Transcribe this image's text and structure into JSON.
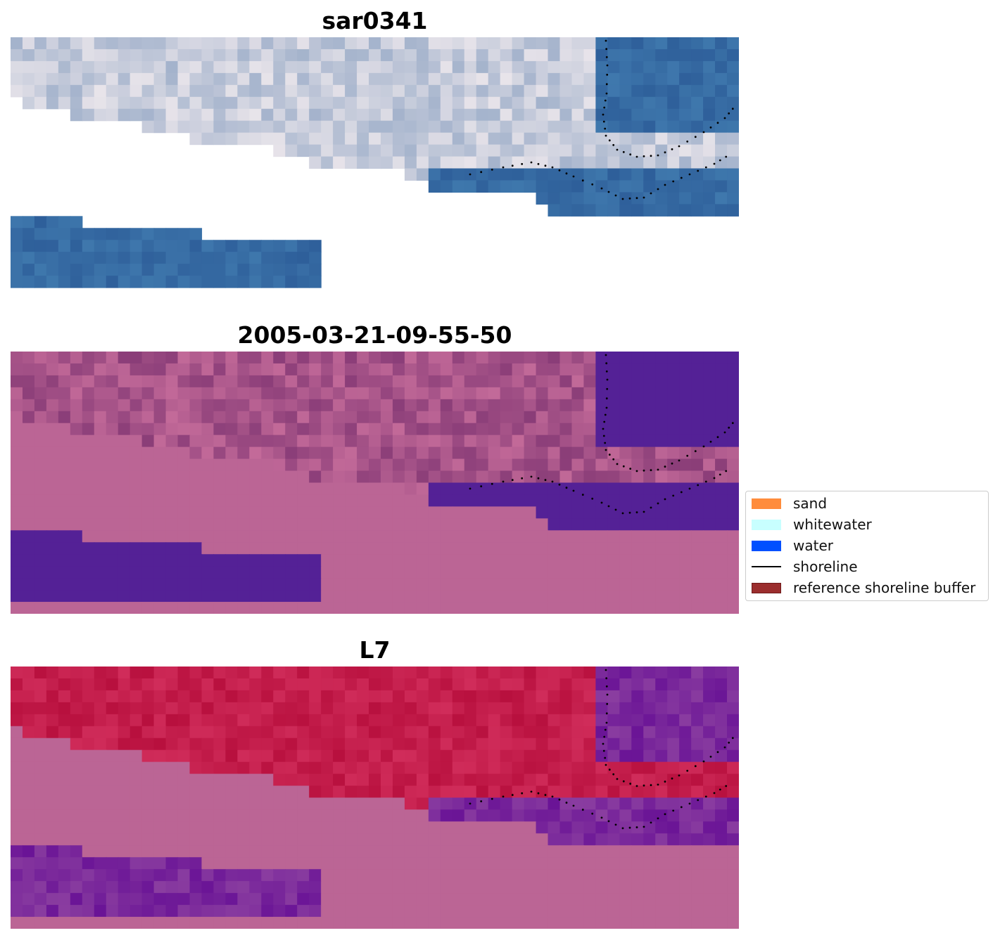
{
  "panels": [
    {
      "title": "sar0341",
      "variant": "rgb"
    },
    {
      "title": "2005-03-21-09-55-50",
      "variant": "classified"
    },
    {
      "title": "L7",
      "variant": "ndwi"
    }
  ],
  "legend": {
    "items": [
      {
        "label": "sand",
        "color": "#ff8c3c",
        "kind": "patch"
      },
      {
        "label": "whitewater",
        "color": "#c8ffff",
        "kind": "patch"
      },
      {
        "label": "water",
        "color": "#0050ff",
        "kind": "patch"
      },
      {
        "label": "shoreline",
        "color": "#000000",
        "kind": "line"
      },
      {
        "label": "reference shoreline buffer",
        "color": "#9b2d2d",
        "kind": "patch"
      }
    ]
  },
  "colors": {
    "masked_pink": "#bb6595",
    "classified_water": "#542196",
    "ndwi_land": "#c01844",
    "ndwi_water": "#6c1a9a",
    "shoreline_points": "#000000"
  }
}
